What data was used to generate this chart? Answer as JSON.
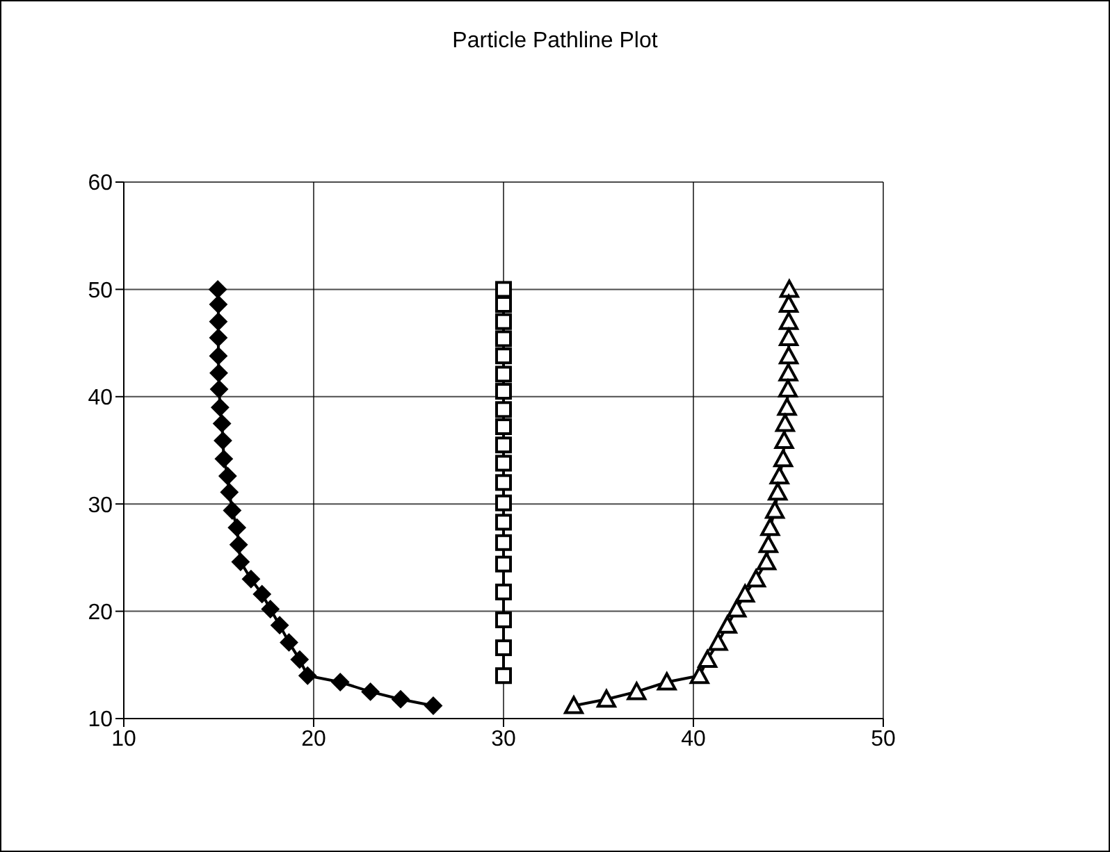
{
  "chart_data": {
    "type": "line",
    "title": "Particle Pathline Plot",
    "series": [
      {
        "color": "#000000",
        "marker": "diamond",
        "x": [
          14.95,
          14.98,
          14.98,
          14.98,
          14.98,
          15.0,
          15.02,
          15.07,
          15.17,
          15.22,
          15.27,
          15.47,
          15.56,
          15.71,
          15.96,
          16.05,
          16.15,
          16.7,
          17.28,
          17.72,
          18.21,
          18.7,
          19.26,
          19.68,
          21.4,
          22.99,
          24.58,
          26.3
        ],
        "values": [
          50,
          48.6,
          47.0,
          45.5,
          43.8,
          42.2,
          40.7,
          39.0,
          37.5,
          35.9,
          34.2,
          32.6,
          31.1,
          29.4,
          27.8,
          26.2,
          24.6,
          23.0,
          21.6,
          20.2,
          18.7,
          17.1,
          15.5,
          14.0,
          13.4,
          12.5,
          11.8,
          11.2
        ]
      },
      {
        "color": "#000000",
        "marker": "square",
        "x": [
          30,
          30,
          30,
          30,
          30,
          30,
          30,
          30,
          30,
          30,
          30,
          30,
          30,
          30,
          30,
          30,
          30,
          30,
          30,
          30
        ],
        "values": [
          50,
          48.6,
          47.0,
          45.4,
          43.8,
          42.1,
          40.5,
          38.8,
          37.2,
          35.5,
          33.8,
          32.0,
          30.1,
          28.3,
          26.4,
          24.4,
          21.8,
          19.2,
          16.6,
          14.0
        ]
      },
      {
        "color": "#000000",
        "marker": "triangle",
        "x": [
          45.05,
          45.02,
          45.02,
          45.02,
          45.02,
          45.0,
          44.98,
          44.93,
          44.83,
          44.78,
          44.73,
          44.53,
          44.44,
          44.29,
          44.04,
          43.95,
          43.85,
          43.3,
          42.72,
          42.28,
          41.79,
          41.3,
          40.74,
          40.32,
          38.6,
          37.01,
          35.42,
          33.7
        ],
        "values": [
          50,
          48.6,
          47.0,
          45.5,
          43.8,
          42.2,
          40.7,
          39.0,
          37.5,
          35.9,
          34.2,
          32.6,
          31.1,
          29.4,
          27.8,
          26.2,
          24.6,
          23.0,
          21.6,
          20.2,
          18.7,
          17.1,
          15.5,
          14.0,
          13.4,
          12.5,
          11.8,
          11.2
        ]
      }
    ],
    "xlim": [
      10,
      50
    ],
    "xticks": [
      10,
      20,
      30,
      40,
      50
    ],
    "ylim": [
      10,
      60
    ],
    "yticks": [
      10,
      20,
      30,
      40,
      50,
      60
    ],
    "grid": true,
    "legend": false,
    "line_style": "solid"
  }
}
